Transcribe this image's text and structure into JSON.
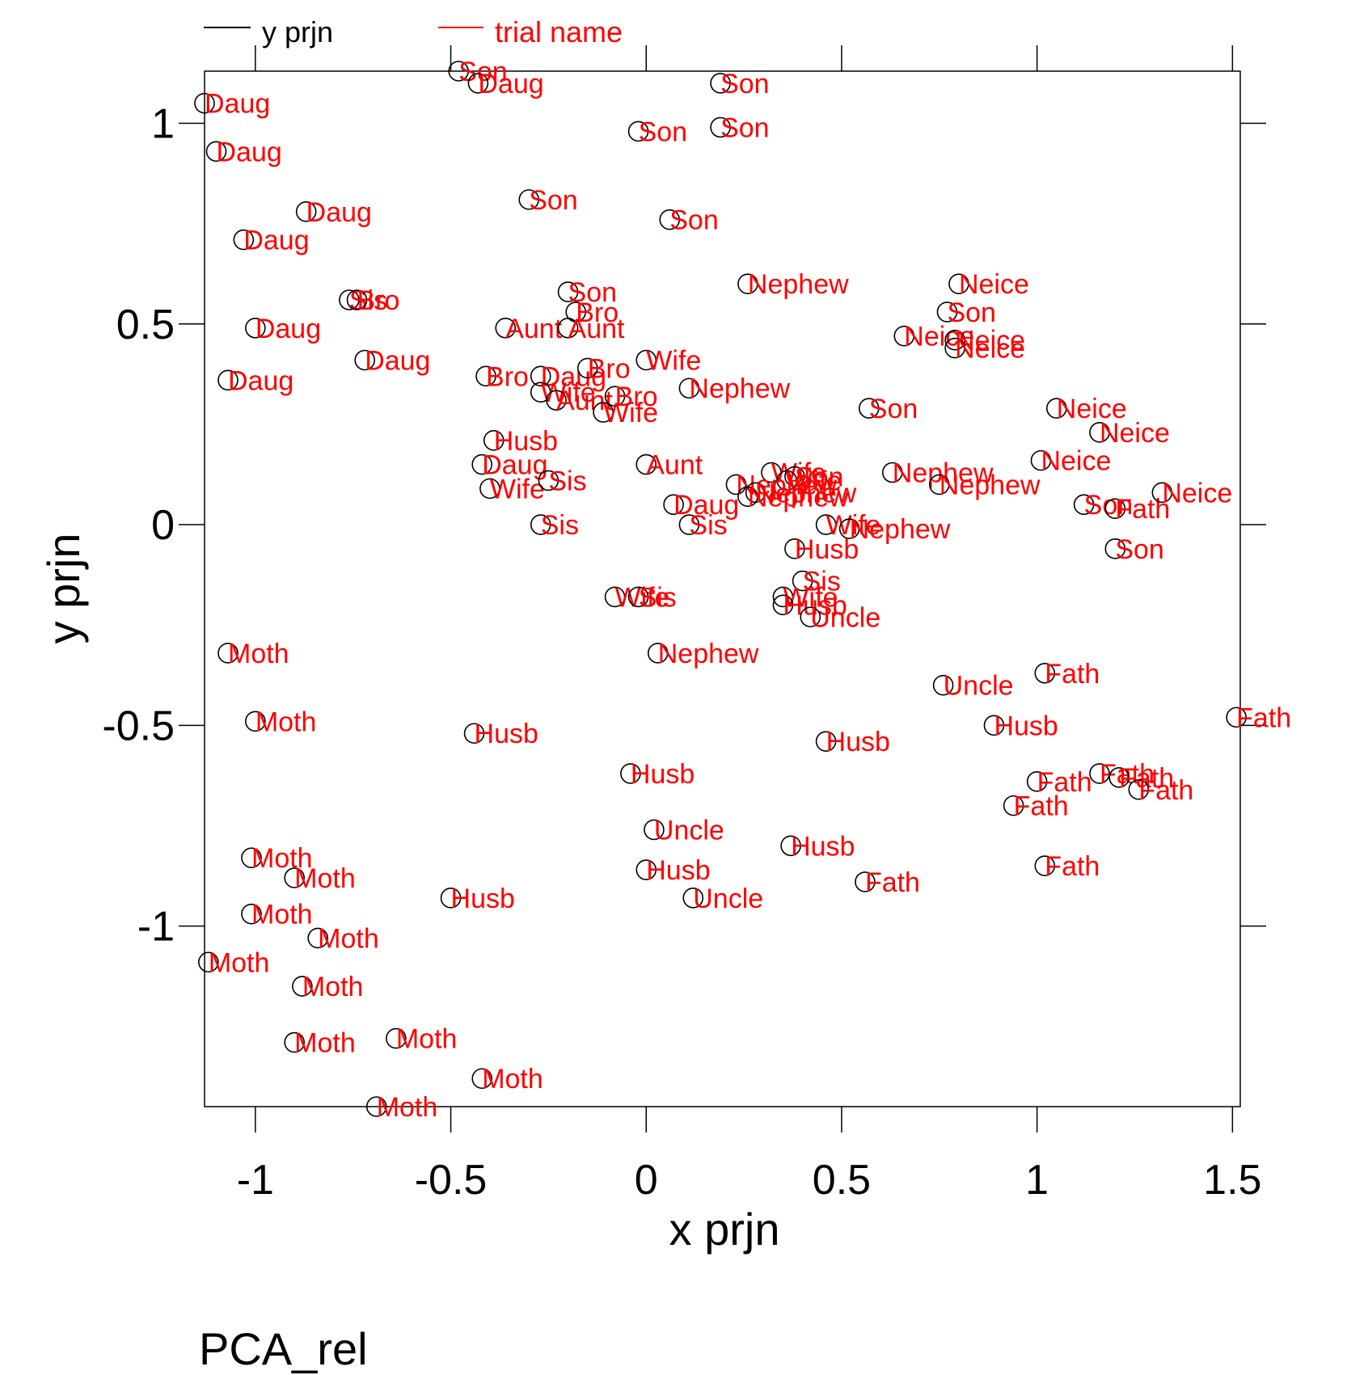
{
  "chart_data": {
    "type": "scatter",
    "title": "",
    "xlabel": "x prjn",
    "ylabel": "y prjn",
    "xlim": [
      -1.13,
      1.52
    ],
    "ylim": [
      -1.45,
      1.13
    ],
    "x_ticks": [
      -1,
      -0.5,
      0,
      0.5,
      1,
      1.5
    ],
    "x_tick_labels": [
      "-1",
      "-0.5",
      "0",
      "0.5",
      "1",
      "1.5"
    ],
    "y_ticks": [
      -1,
      -0.5,
      0,
      0.5,
      1
    ],
    "y_tick_labels": [
      "-1",
      "-0.5",
      "0",
      "0.5",
      "1"
    ],
    "grid": false,
    "legend": {
      "placement": "top",
      "entries": [
        {
          "label": "y prjn",
          "color": "#000000"
        },
        {
          "label": "trial name",
          "color": "#ff0000"
        }
      ]
    },
    "marker_color": "#000000",
    "label_color": "#ff0000",
    "points": [
      {
        "x": -1.13,
        "y": 1.05,
        "label": "Daug"
      },
      {
        "x": -1.1,
        "y": 0.93,
        "label": "Daug"
      },
      {
        "x": -0.87,
        "y": 0.78,
        "label": "Daug"
      },
      {
        "x": -1.03,
        "y": 0.71,
        "label": "Daug"
      },
      {
        "x": -1.0,
        "y": 0.49,
        "label": "Daug"
      },
      {
        "x": -0.72,
        "y": 0.41,
        "label": "Daug"
      },
      {
        "x": -1.07,
        "y": 0.36,
        "label": "Daug"
      },
      {
        "x": -0.76,
        "y": 0.56,
        "label": "Sis"
      },
      {
        "x": -0.74,
        "y": 0.56,
        "label": "Bro"
      },
      {
        "x": -0.48,
        "y": 1.13,
        "label": "Son"
      },
      {
        "x": -0.43,
        "y": 1.1,
        "label": "Daug"
      },
      {
        "x": 0.19,
        "y": 1.1,
        "label": "Son"
      },
      {
        "x": -0.02,
        "y": 0.98,
        "label": "Son"
      },
      {
        "x": 0.19,
        "y": 0.99,
        "label": "Son"
      },
      {
        "x": -0.3,
        "y": 0.81,
        "label": "Son"
      },
      {
        "x": 0.06,
        "y": 0.76,
        "label": "Son"
      },
      {
        "x": -0.2,
        "y": 0.58,
        "label": "Son"
      },
      {
        "x": -0.18,
        "y": 0.53,
        "label": "Bro"
      },
      {
        "x": -0.36,
        "y": 0.49,
        "label": "Aunt"
      },
      {
        "x": -0.2,
        "y": 0.49,
        "label": "Aunt"
      },
      {
        "x": -0.41,
        "y": 0.37,
        "label": "Bro"
      },
      {
        "x": -0.27,
        "y": 0.37,
        "label": "Daug"
      },
      {
        "x": -0.15,
        "y": 0.39,
        "label": "Bro"
      },
      {
        "x": 0.0,
        "y": 0.41,
        "label": "Wife"
      },
      {
        "x": -0.27,
        "y": 0.33,
        "label": "Wife"
      },
      {
        "x": -0.23,
        "y": 0.31,
        "label": "Aunt"
      },
      {
        "x": -0.08,
        "y": 0.32,
        "label": "Bro"
      },
      {
        "x": -0.11,
        "y": 0.28,
        "label": "Wife"
      },
      {
        "x": 0.11,
        "y": 0.34,
        "label": "Nephew"
      },
      {
        "x": -0.39,
        "y": 0.21,
        "label": "Husb"
      },
      {
        "x": -0.42,
        "y": 0.15,
        "label": "Daug"
      },
      {
        "x": -0.4,
        "y": 0.09,
        "label": "Wife"
      },
      {
        "x": -0.25,
        "y": 0.11,
        "label": "Sis"
      },
      {
        "x": -0.27,
        "y": 0.0,
        "label": "Sis"
      },
      {
        "x": 0.0,
        "y": 0.15,
        "label": "Aunt"
      },
      {
        "x": 0.07,
        "y": 0.05,
        "label": "Daug"
      },
      {
        "x": 0.11,
        "y": 0.0,
        "label": "Sis"
      },
      {
        "x": 0.26,
        "y": 0.6,
        "label": "Nephew"
      },
      {
        "x": 0.8,
        "y": 0.6,
        "label": "Neice"
      },
      {
        "x": 0.77,
        "y": 0.53,
        "label": "Son"
      },
      {
        "x": 0.66,
        "y": 0.47,
        "label": "Neice"
      },
      {
        "x": 0.79,
        "y": 0.46,
        "label": "Neice"
      },
      {
        "x": 0.79,
        "y": 0.44,
        "label": "Neice"
      },
      {
        "x": 0.57,
        "y": 0.29,
        "label": "Son"
      },
      {
        "x": 1.05,
        "y": 0.29,
        "label": "Neice"
      },
      {
        "x": 1.16,
        "y": 0.23,
        "label": "Neice"
      },
      {
        "x": 1.01,
        "y": 0.16,
        "label": "Neice"
      },
      {
        "x": 0.63,
        "y": 0.13,
        "label": "Nephew"
      },
      {
        "x": 0.75,
        "y": 0.1,
        "label": "Nephew"
      },
      {
        "x": 0.32,
        "y": 0.13,
        "label": "Wife"
      },
      {
        "x": 0.38,
        "y": 0.12,
        "label": "Son"
      },
      {
        "x": 0.36,
        "y": 0.11,
        "label": "Wife"
      },
      {
        "x": 0.23,
        "y": 0.1,
        "label": "Nephew"
      },
      {
        "x": 0.28,
        "y": 0.08,
        "label": "Nephew"
      },
      {
        "x": 0.26,
        "y": 0.07,
        "label": "Nephew"
      },
      {
        "x": 1.12,
        "y": 0.05,
        "label": "Son"
      },
      {
        "x": 1.2,
        "y": 0.04,
        "label": "Fath"
      },
      {
        "x": 1.32,
        "y": 0.08,
        "label": "Neice"
      },
      {
        "x": 0.46,
        "y": 0.0,
        "label": "Wife"
      },
      {
        "x": 0.52,
        "y": -0.01,
        "label": "Nephew"
      },
      {
        "x": 1.2,
        "y": -0.06,
        "label": "Son"
      },
      {
        "x": 0.38,
        "y": -0.06,
        "label": "Husb"
      },
      {
        "x": 0.4,
        "y": -0.14,
        "label": "Sis"
      },
      {
        "x": 0.35,
        "y": -0.18,
        "label": "Wife"
      },
      {
        "x": 0.35,
        "y": -0.2,
        "label": "Husb"
      },
      {
        "x": 0.42,
        "y": -0.23,
        "label": "Uncle"
      },
      {
        "x": -0.08,
        "y": -0.18,
        "label": "Wife"
      },
      {
        "x": -0.02,
        "y": -0.18,
        "label": "Sis"
      },
      {
        "x": -1.07,
        "y": -0.32,
        "label": "Moth"
      },
      {
        "x": -1.0,
        "y": -0.49,
        "label": "Moth"
      },
      {
        "x": 0.03,
        "y": -0.32,
        "label": "Nephew"
      },
      {
        "x": -0.44,
        "y": -0.52,
        "label": "Husb"
      },
      {
        "x": 0.46,
        "y": -0.54,
        "label": "Husb"
      },
      {
        "x": 0.76,
        "y": -0.4,
        "label": "Uncle"
      },
      {
        "x": 1.02,
        "y": -0.37,
        "label": "Fath"
      },
      {
        "x": 0.89,
        "y": -0.5,
        "label": "Husb"
      },
      {
        "x": 1.51,
        "y": -0.48,
        "label": "Fath"
      },
      {
        "x": -0.04,
        "y": -0.62,
        "label": "Husb"
      },
      {
        "x": 1.0,
        "y": -0.64,
        "label": "Fath"
      },
      {
        "x": 1.16,
        "y": -0.62,
        "label": "Fath"
      },
      {
        "x": 1.21,
        "y": -0.63,
        "label": "Fath"
      },
      {
        "x": 1.26,
        "y": -0.66,
        "label": "Fath"
      },
      {
        "x": 0.94,
        "y": -0.7,
        "label": "Fath"
      },
      {
        "x": 0.02,
        "y": -0.76,
        "label": "Uncle"
      },
      {
        "x": 0.37,
        "y": -0.8,
        "label": "Husb"
      },
      {
        "x": 0.0,
        "y": -0.86,
        "label": "Husb"
      },
      {
        "x": 0.56,
        "y": -0.89,
        "label": "Fath"
      },
      {
        "x": 1.02,
        "y": -0.85,
        "label": "Fath"
      },
      {
        "x": 0.12,
        "y": -0.93,
        "label": "Uncle"
      },
      {
        "x": -0.5,
        "y": -0.93,
        "label": "Husb"
      },
      {
        "x": -1.01,
        "y": -0.83,
        "label": "Moth"
      },
      {
        "x": -0.9,
        "y": -0.88,
        "label": "Moth"
      },
      {
        "x": -1.01,
        "y": -0.97,
        "label": "Moth"
      },
      {
        "x": -0.84,
        "y": -1.03,
        "label": "Moth"
      },
      {
        "x": -1.12,
        "y": -1.09,
        "label": "Moth"
      },
      {
        "x": -0.88,
        "y": -1.15,
        "label": "Moth"
      },
      {
        "x": -0.9,
        "y": -1.29,
        "label": "Moth"
      },
      {
        "x": -0.64,
        "y": -1.28,
        "label": "Moth"
      },
      {
        "x": -0.42,
        "y": -1.38,
        "label": "Moth"
      },
      {
        "x": -0.69,
        "y": -1.45,
        "label": "Moth"
      }
    ]
  },
  "caption": "PCA_rel"
}
